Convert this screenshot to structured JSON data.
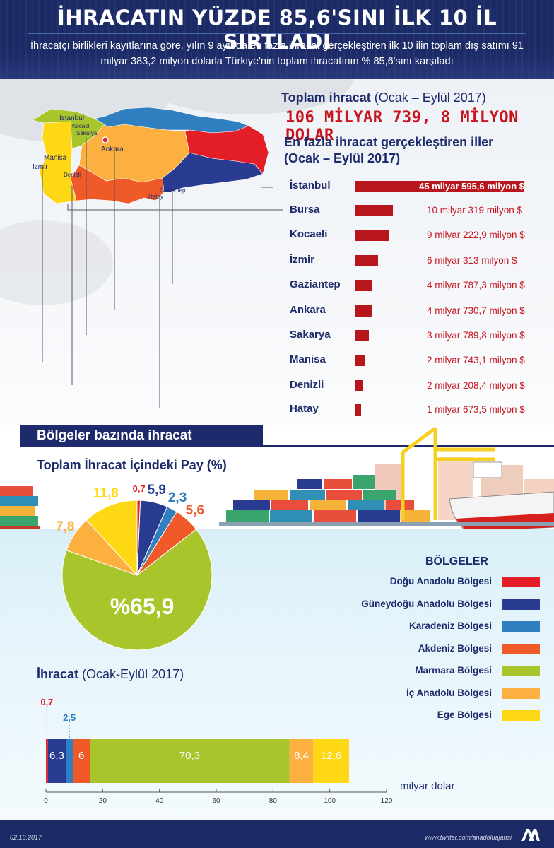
{
  "header": {
    "title": "İHRACATIN YÜZDE 85,6'SINI İLK 10 İL SIRTLADI",
    "subtitle": "İhracatçı birlikleri kayıtlarına göre, yılın 9 ayında en fazla ihracat gerçekleştiren ilk 10 ilin toplam dış satımı 91 milyar 383,2 milyon dolarla Türkiye'nin toplam ihracatının % 85,6'sını karşıladı"
  },
  "total": {
    "label": "Toplam ihracat",
    "period": "(Ocak – Eylül 2017)",
    "value": "106 MİLYAR 739, 8 MİLYON DOLAR"
  },
  "map_labels": {
    "istanbul": "İstanbul",
    "kocaeli": "Kocaeli",
    "sakarya": "Sakarya",
    "manisa": "Manisa",
    "izmir": "İzmir",
    "denizli": "Denizli",
    "ankara": "Ankara",
    "gaziantep": "Gaziantep",
    "hatay": "Hatay"
  },
  "top_provinces": {
    "title_line1": "En fazla ihracat gerçekleştiren iller",
    "title_line2": "(Ocak – Eylül 2017)"
  },
  "chart_data": [
    {
      "type": "bar",
      "orientation": "horizontal",
      "title": "En fazla ihracat gerçekleştiren iller (Ocak – Eylül 2017)",
      "categories": [
        "İstanbul",
        "Bursa",
        "Kocaeli",
        "İzmir",
        "Gaziantep",
        "Ankara",
        "Sakarya",
        "Manisa",
        "Denizli",
        "Hatay"
      ],
      "values": [
        45595.6,
        10319,
        9222.9,
        6313,
        4787.3,
        4730.7,
        3789.8,
        2743.1,
        2208.4,
        1673.5
      ],
      "value_labels": [
        "45 milyar 595,6 milyon $",
        "10 milyar 319 milyon $",
        "9 milyar 222,9 milyon $",
        "6 milyar 313 milyon $",
        "4 milyar 787,3 milyon $",
        "4 milyar 730,7 milyon $",
        "3 milyar 789,8 milyon $",
        "2 milyar 743,1 milyon $",
        "2 milyar 208,4 milyon $",
        "1 milyar 673,5 milyon $"
      ],
      "color": "#b8161d"
    },
    {
      "type": "pie",
      "title": "Toplam İhracat İçindeki Pay (%)",
      "categories": [
        "Doğu Anadolu Bölgesi",
        "Güneydoğu Anadolu Bölgesi",
        "Karadeniz Bölgesi",
        "Akdeniz Bölgesi",
        "Marmara Bölgesi",
        "İç Anadolu Bölgesi",
        "Ege Bölgesi"
      ],
      "values": [
        0.7,
        5.9,
        2.3,
        5.6,
        65.9,
        7.8,
        11.8
      ],
      "labels": [
        "0,7",
        "5,9",
        "2,3",
        "5,6",
        "%65,9",
        "7,8",
        "11,8"
      ],
      "colors": [
        "#e41e26",
        "#2a3c92",
        "#2f7fc1",
        "#f05a28",
        "#a8c62c",
        "#fbb040",
        "#ffd815"
      ]
    },
    {
      "type": "bar",
      "orientation": "horizontal-stacked",
      "title": "İhracat (Ocak-Eylül 2017)",
      "xlabel": "milyar dolar",
      "xlim": [
        0,
        120
      ],
      "xticks": [
        "0",
        "20",
        "40",
        "60",
        "80",
        "100",
        "120"
      ],
      "series": [
        {
          "name": "Doğu Anadolu Bölgesi",
          "value": 0.7,
          "label": "0,7"
        },
        {
          "name": "Güneydoğu Anadolu Bölgesi",
          "value": 6.3,
          "label": "6,3"
        },
        {
          "name": "Karadeniz Bölgesi",
          "value": 2.5,
          "label": "2,5"
        },
        {
          "name": "Akdeniz Bölgesi",
          "value": 6,
          "label": "6"
        },
        {
          "name": "Marmara Bölgesi",
          "value": 70.3,
          "label": "70,3"
        },
        {
          "name": "İç Anadolu Bölgesi",
          "value": 8.4,
          "label": "8,4"
        },
        {
          "name": "Ege Bölgesi",
          "value": 12.6,
          "label": "12,6"
        }
      ]
    }
  ],
  "regions_section": {
    "banner": "Bölgeler bazında ihracat",
    "pie_title": "Toplam İhracat İçindeki Pay (%)",
    "legend_title": "BÖLGELER",
    "bar_title": "İhracat",
    "bar_period": "(Ocak-Eylül 2017)",
    "unit": "milyar dolar"
  },
  "footer": {
    "date": "02.10.2017",
    "handle": "www.twitter.com/anadoluajansi"
  }
}
